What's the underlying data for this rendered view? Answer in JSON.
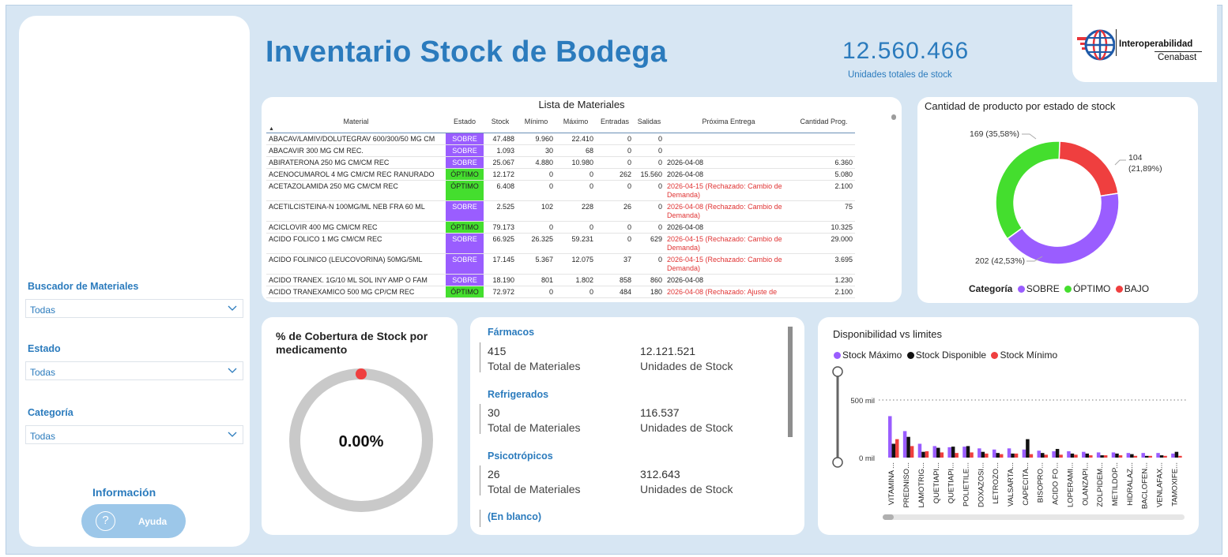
{
  "header": {
    "title": "Inventario Stock de Bodega",
    "total_units": "12.560.466",
    "total_units_label": "Unidades totales de stock",
    "logo_line1": "Interoperabilidad",
    "logo_line2": "Cenabast"
  },
  "sidebar": {
    "filters": [
      {
        "label": "Buscador de Materiales",
        "value": "Todas"
      },
      {
        "label": "Estado",
        "value": "Todas"
      },
      {
        "label": "Categoría",
        "value": "Todas"
      }
    ],
    "info_title": "Información",
    "help_label": "Ayuda",
    "help_icon": "?"
  },
  "materials_table": {
    "title": "Lista de Materiales",
    "columns": [
      "Material",
      "Estado",
      "Stock",
      "Mínimo",
      "Máximo",
      "Entradas",
      "Salidas",
      "Próxima Entrega",
      "Cantidad Prog."
    ],
    "sort_indicator": "▲",
    "rows": [
      {
        "material": "ABACAV/LAMIV/DOLUTEGRAV 600/300/50 MG CM",
        "estado": "SOBRE",
        "stock": "47.488",
        "minimo": "9.960",
        "maximo": "22.410",
        "entradas": "0",
        "salidas": "0",
        "entrega": "",
        "cantidad": ""
      },
      {
        "material": "ABACAVIR 300 MG CM REC.",
        "estado": "SOBRE",
        "stock": "1.093",
        "minimo": "30",
        "maximo": "68",
        "entradas": "0",
        "salidas": "0",
        "entrega": "",
        "cantidad": ""
      },
      {
        "material": "ABIRATERONA 250 MG CM/CM REC",
        "estado": "SOBRE",
        "stock": "25.067",
        "minimo": "4.880",
        "maximo": "10.980",
        "entradas": "0",
        "salidas": "0",
        "entrega": "2026-04-08",
        "cantidad": "6.360"
      },
      {
        "material": "ACENOCUMAROL 4 MG CM/CM REC RANURADO",
        "estado": "ÓPTIMO",
        "stock": "12.172",
        "minimo": "0",
        "maximo": "0",
        "entradas": "262",
        "salidas": "15.560",
        "entrega": "2026-04-08",
        "cantidad": "5.080"
      },
      {
        "material": "ACETAZOLAMIDA 250 MG CM/CM REC",
        "estado": "ÓPTIMO",
        "stock": "6.408",
        "minimo": "0",
        "maximo": "0",
        "entradas": "0",
        "salidas": "0",
        "entrega": "2026-04-15 (Rechazado: Cambio de Demanda)",
        "cantidad": "2.100"
      },
      {
        "material": "ACETILCISTEINA-N 100MG/ML NEB FRA 60 ML",
        "estado": "SOBRE",
        "stock": "2.525",
        "minimo": "102",
        "maximo": "228",
        "entradas": "26",
        "salidas": "0",
        "entrega": "2026-04-08 (Rechazado: Cambio de Demanda)",
        "cantidad": "75"
      },
      {
        "material": "ACICLOVIR 400 MG CM/CM REC",
        "estado": "ÓPTIMO",
        "stock": "79.173",
        "minimo": "0",
        "maximo": "0",
        "entradas": "0",
        "salidas": "0",
        "entrega": "2026-04-08",
        "cantidad": "10.325"
      },
      {
        "material": "ACIDO FOLICO 1 MG CM/CM REC",
        "estado": "SOBRE",
        "stock": "66.925",
        "minimo": "26.325",
        "maximo": "59.231",
        "entradas": "0",
        "salidas": "629",
        "entrega": "2026-04-15 (Rechazado: Cambio de Demanda)",
        "cantidad": "29.000"
      },
      {
        "material": "ACIDO FOLINICO (LEUCOVORINA) 50MG/5ML",
        "estado": "SOBRE",
        "stock": "17.145",
        "minimo": "5.367",
        "maximo": "12.075",
        "entradas": "37",
        "salidas": "0",
        "entrega": "2026-04-15 (Rechazado: Cambio de Demanda)",
        "cantidad": "3.695"
      },
      {
        "material": "ACIDO TRANEX. 1G/10 ML SOL INY AMP O FAM",
        "estado": "SOBRE",
        "stock": "18.190",
        "minimo": "801",
        "maximo": "1.802",
        "entradas": "858",
        "salidas": "860",
        "entrega": "2026-04-08",
        "cantidad": "1.230"
      },
      {
        "material": "ACIDO TRANEXAMICO 500 MG CP/CM REC",
        "estado": "ÓPTIMO",
        "stock": "72.972",
        "minimo": "0",
        "maximo": "0",
        "entradas": "484",
        "salidas": "180",
        "entrega": "2026-04-08 (Rechazado: Ajuste de",
        "cantidad": "2.100"
      }
    ]
  },
  "donut": {
    "title": "Cantidad de producto por estado de stock",
    "legend_title": "Categoría",
    "slices": [
      {
        "name": "SOBRE",
        "value": 202,
        "label": "202 (42,53%)",
        "color": "#9a5dff"
      },
      {
        "name": "ÓPTIMO",
        "value": 169,
        "label": "169 (35,58%)",
        "color": "#44de2e"
      },
      {
        "name": "BAJO",
        "value": 104,
        "label1": "104",
        "label2": "(21,89%)",
        "color": "#ef3f3f"
      }
    ]
  },
  "coverage": {
    "title": "% de Cobertura de Stock por medicamento",
    "value": "0.00%"
  },
  "kpis": {
    "groups": [
      {
        "name": "Fármacos",
        "materials": "415",
        "units": "12.121.521"
      },
      {
        "name": "Refrigerados",
        "materials": "30",
        "units": "116.537"
      },
      {
        "name": "Psicotrópicos",
        "materials": "26",
        "units": "312.643"
      },
      {
        "name": "(En blanco)"
      }
    ],
    "materials_label": "Total de Materiales",
    "units_label": "Unidades de Stock"
  },
  "chart_data": {
    "type": "bar",
    "title": "Disponibilidad vs limites",
    "legend_placement": "top-left",
    "yticks": [
      "500 mil",
      "0 mil"
    ],
    "categories": [
      "VITAMINA ...",
      "PREDNISO...",
      "LAMOTRIG...",
      "QUETIAPI...",
      "QUETIAPI...",
      "POLIETILE...",
      "DOXAZOSI...",
      "LETROZO...",
      "VALSARTA...",
      "CAPECITA...",
      "BISOPRO...",
      "ACIDO FO...",
      "LOPERAMI...",
      "OLANZAPI...",
      "ZOLPIDEM...",
      "METILDOP...",
      "HIDRALAZ...",
      "BACLOFEN...",
      "VENLAFAX...",
      "TAMOXIFE..."
    ],
    "series": [
      {
        "name": "Stock Máximo",
        "color": "#9a5dff",
        "values": [
          360,
          230,
          120,
          100,
          90,
          95,
          80,
          70,
          80,
          70,
          60,
          55,
          55,
          50,
          45,
          45,
          40,
          40,
          40,
          35
        ]
      },
      {
        "name": "Stock Disponible",
        "color": "#111111",
        "values": [
          120,
          180,
          50,
          85,
          95,
          100,
          50,
          40,
          35,
          160,
          40,
          75,
          35,
          35,
          20,
          35,
          30,
          15,
          20,
          50
        ]
      },
      {
        "name": "Stock Mínimo",
        "color": "#ef3f3f",
        "values": [
          160,
          100,
          55,
          45,
          40,
          45,
          35,
          30,
          35,
          30,
          25,
          25,
          25,
          20,
          20,
          20,
          15,
          15,
          15,
          15
        ]
      }
    ],
    "ylim": [
      0,
      500
    ]
  }
}
